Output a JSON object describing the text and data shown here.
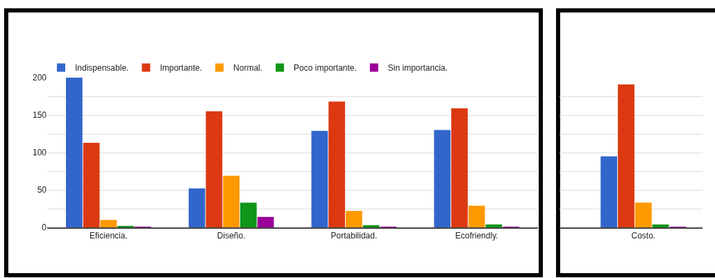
{
  "chart_data": {
    "type": "bar",
    "categories": [
      "Eficiencia.",
      "Diseño.",
      "Portabilidad.",
      "Ecofriendly.",
      "Costo."
    ],
    "series": [
      {
        "name": "Indispensable.",
        "color": "#3366cc",
        "values": [
          200,
          52,
          129,
          130,
          95
        ]
      },
      {
        "name": "Importante.",
        "color": "#dc3912",
        "values": [
          113,
          155,
          168,
          159,
          191
        ]
      },
      {
        "name": "Normal.",
        "color": "#ff9900",
        "values": [
          10,
          69,
          22,
          29,
          33
        ]
      },
      {
        "name": "Poco importante.",
        "color": "#109618",
        "values": [
          2,
          33,
          3,
          4,
          4
        ]
      },
      {
        "name": "Sin importancia.",
        "color": "#990099",
        "values": [
          1,
          14,
          1,
          1,
          1
        ]
      }
    ],
    "ylim": [
      0,
      200
    ],
    "yticks": [
      0,
      {
        "value": 25,
        "label": null
      },
      50,
      {
        "value": 75,
        "label": null
      },
      100,
      {
        "value": 125,
        "label": null
      },
      150,
      {
        "value": 175,
        "label": null
      },
      200
    ],
    "grid": "y",
    "legend": "top left"
  }
}
